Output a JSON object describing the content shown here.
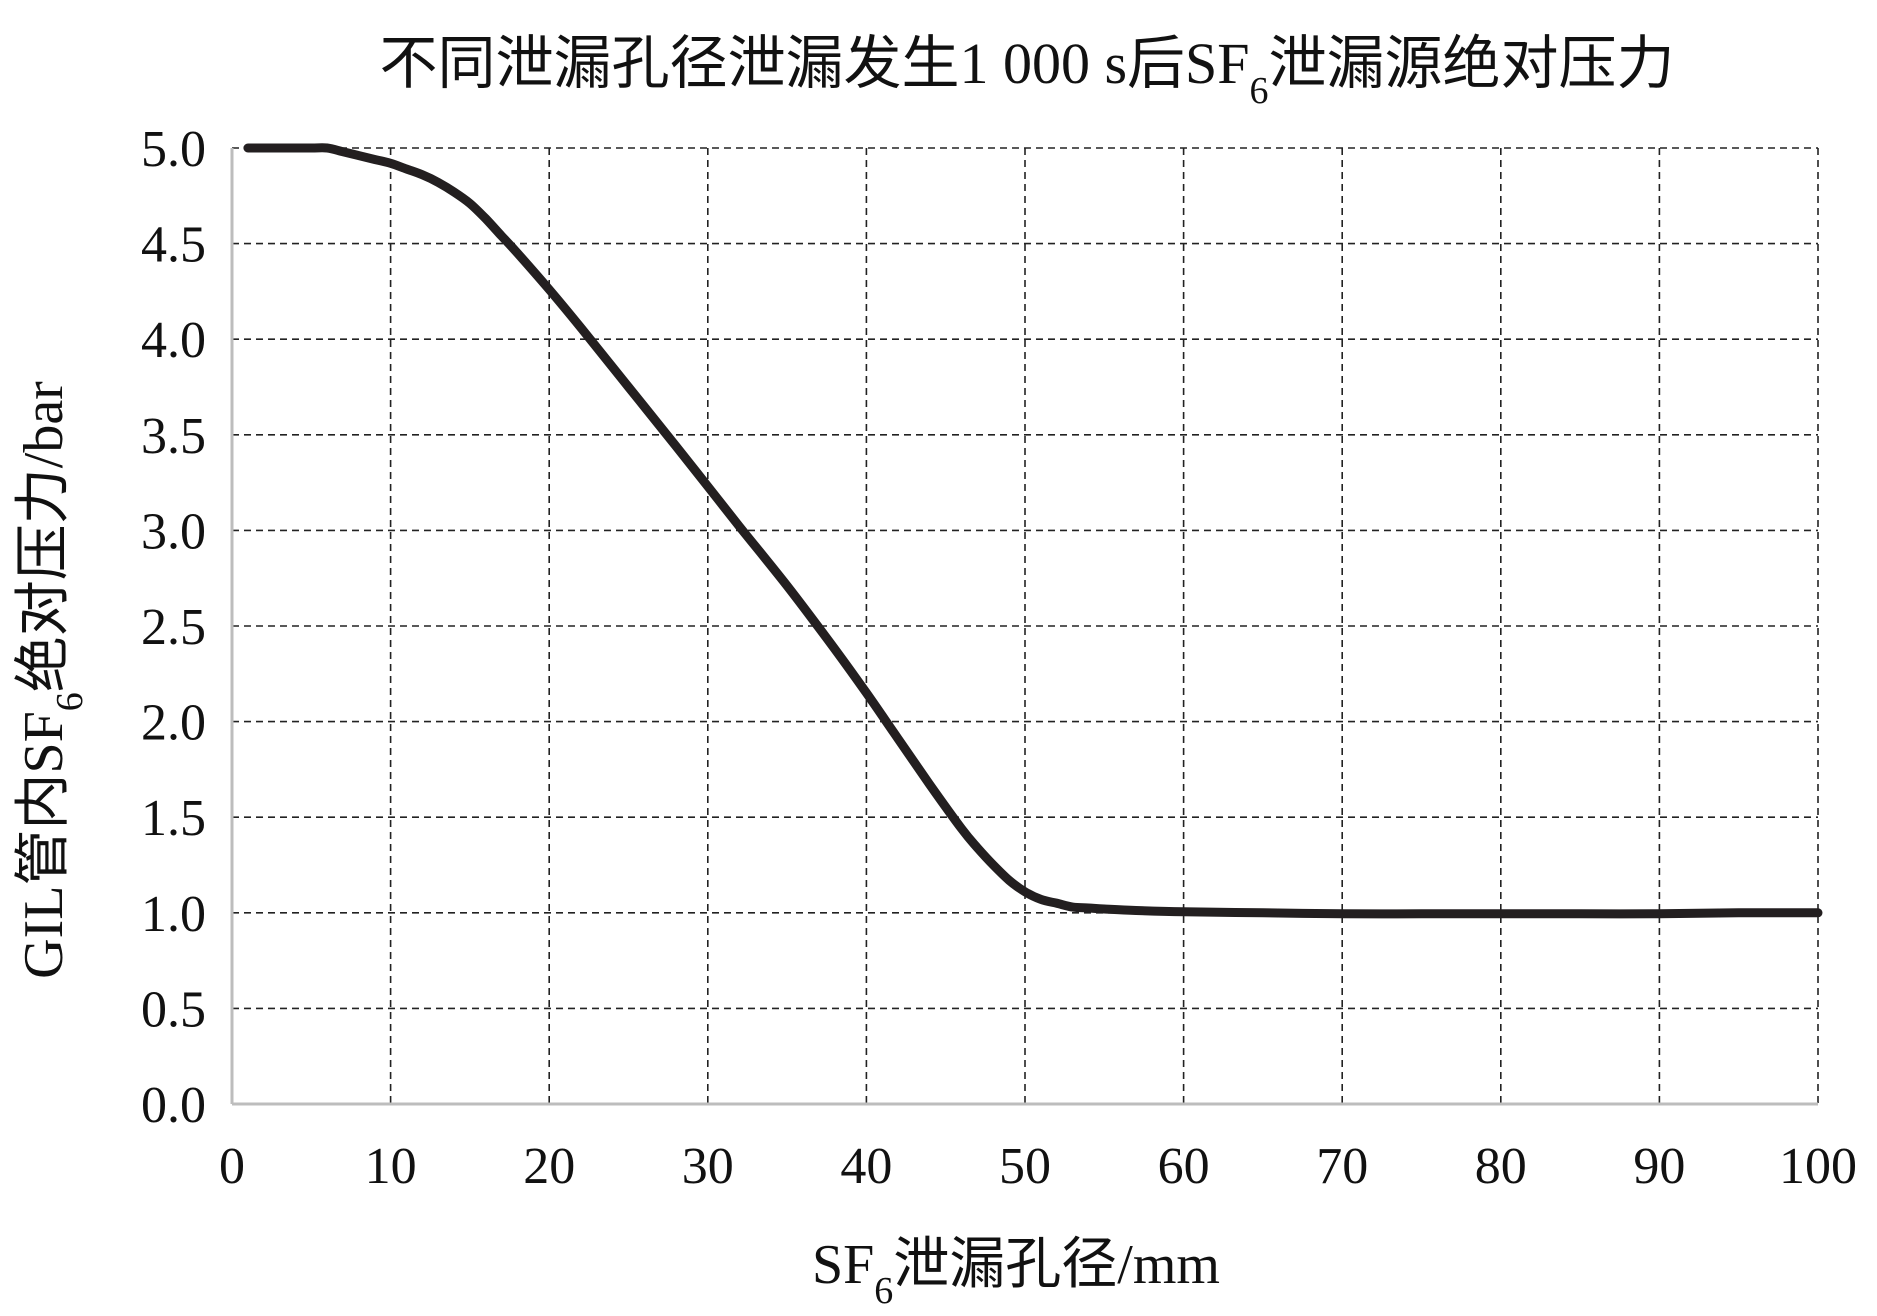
{
  "chart_data": {
    "type": "line",
    "title": {
      "pre": "不同泄漏孔径泄漏发生1 000 s后SF",
      "sub": "6",
      "post": "泄漏源绝对压力"
    },
    "xlabel": {
      "pre": "SF",
      "sub": "6",
      "post": "泄漏孔径/mm"
    },
    "ylabel": {
      "pre": "GIL管内SF",
      "sub": "6",
      "post": "绝对压力/bar"
    },
    "xlim": [
      0,
      100
    ],
    "ylim": [
      0,
      5
    ],
    "x_ticks": [
      "0",
      "10",
      "20",
      "30",
      "40",
      "50",
      "60",
      "70",
      "80",
      "90",
      "100"
    ],
    "y_ticks": [
      "0.0",
      "0.5",
      "1.0",
      "1.5",
      "2.0",
      "2.5",
      "3.0",
      "3.5",
      "4.0",
      "4.5",
      "5.0"
    ],
    "grid": true,
    "line_color": "#231f20",
    "series": [
      {
        "x": [
          1,
          3,
          5,
          6,
          7,
          8,
          9,
          10,
          11,
          12,
          13,
          14,
          15,
          16,
          17,
          18,
          20,
          22,
          25,
          28,
          30,
          32,
          35,
          38,
          40,
          42,
          44,
          46,
          47,
          48,
          49,
          50,
          51,
          52,
          53,
          54,
          55,
          57,
          60,
          65,
          70,
          75,
          80,
          85,
          90,
          95,
          100
        ],
        "y": [
          5.0,
          5.0,
          5.0,
          5.0,
          4.98,
          4.96,
          4.94,
          4.92,
          4.89,
          4.86,
          4.82,
          4.77,
          4.71,
          4.63,
          4.54,
          4.45,
          4.26,
          4.06,
          3.75,
          3.44,
          3.23,
          3.02,
          2.71,
          2.38,
          2.15,
          1.91,
          1.67,
          1.44,
          1.34,
          1.25,
          1.17,
          1.11,
          1.07,
          1.05,
          1.03,
          1.025,
          1.02,
          1.012,
          1.005,
          1.0,
          0.995,
          0.995,
          0.995,
          0.995,
          0.995,
          1.0,
          1.0
        ]
      }
    ]
  }
}
